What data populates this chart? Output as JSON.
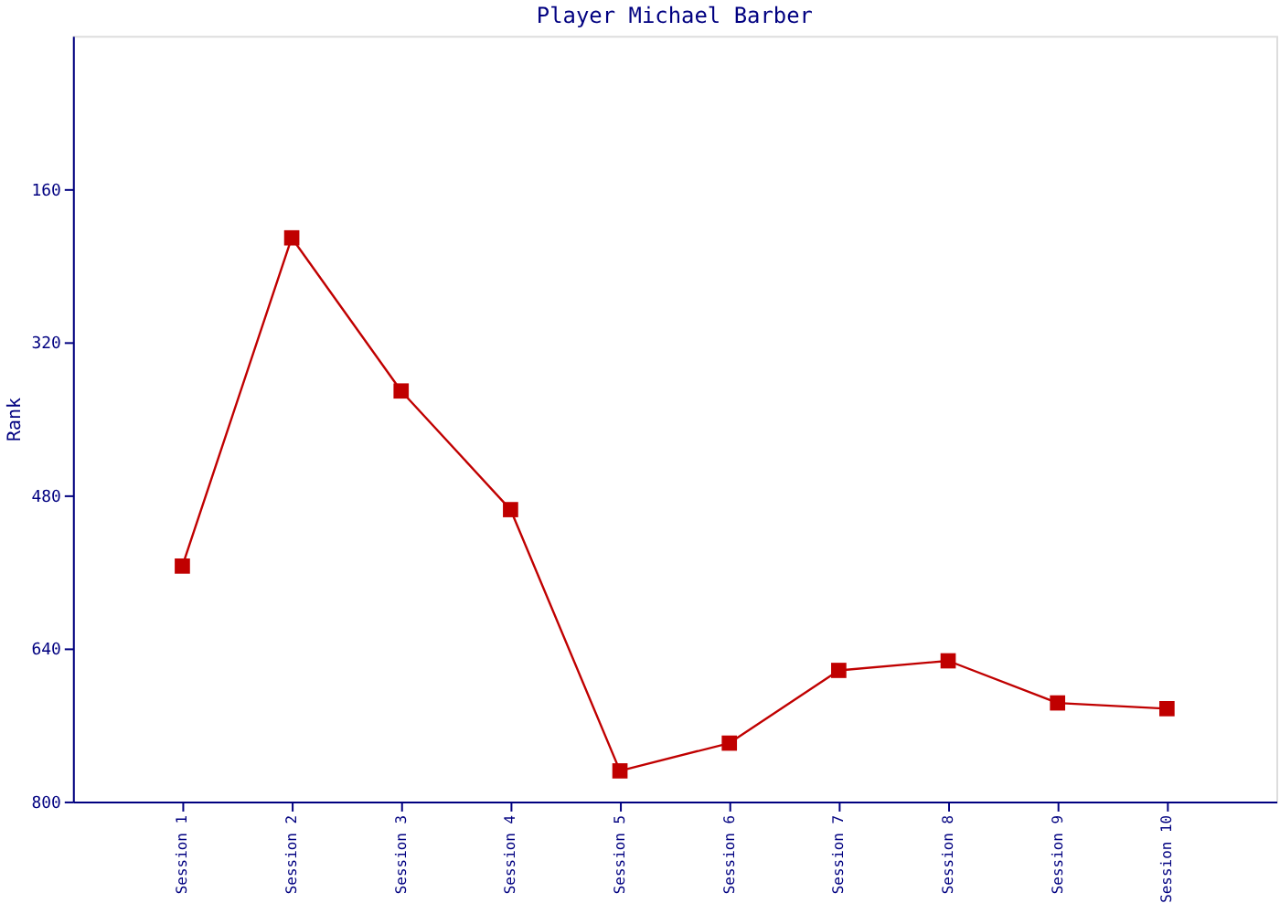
{
  "chart_data": {
    "type": "line",
    "title": "Player Michael Barber",
    "ylabel": "Rank",
    "categories": [
      "Session 1",
      "Session 2",
      "Session 3",
      "Session 4",
      "Session 5",
      "Session 6",
      "Session 7",
      "Session 8",
      "Session 9",
      "Session 10"
    ],
    "series": [
      {
        "color": "#c00000",
        "values": [
          554,
          211,
          371,
          495,
          768,
          739,
          663,
          653,
          697,
          703
        ]
      }
    ],
    "ylim": [
      800,
      0
    ],
    "yticks": [
      160,
      320,
      480,
      640,
      800
    ],
    "grid": false,
    "legend": false,
    "marker": "square",
    "line_style": "solid"
  }
}
